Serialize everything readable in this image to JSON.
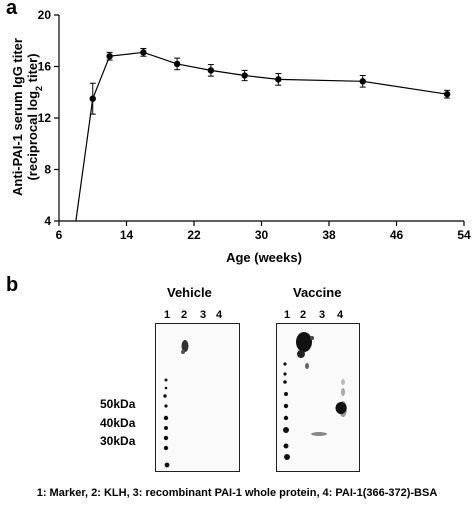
{
  "panel_a_label": "a",
  "panel_b_label": "b",
  "chart_data": {
    "type": "line",
    "xlabel": "Age (weeks)",
    "ylabel_line1": "Anti-PAI-1 serum IgG titer",
    "ylabel_line2_prefix": "(reciprocal log",
    "ylabel_line2_sub": "2",
    "ylabel_line2_suffix": " titer)",
    "xlim": [
      6,
      54
    ],
    "ylim": [
      4,
      20
    ],
    "xticks": [
      6,
      14,
      22,
      30,
      38,
      46,
      54
    ],
    "yticks": [
      4,
      8,
      12,
      16,
      20
    ],
    "series": [
      {
        "x": [
          8,
          10,
          12,
          16,
          20,
          24,
          28,
          32,
          42,
          52
        ],
        "y": [
          4.0,
          13.5,
          16.8,
          17.1,
          16.2,
          15.7,
          15.3,
          15.0,
          14.85,
          13.85
        ],
        "err": [
          0,
          1.2,
          0.3,
          0.3,
          0.45,
          0.45,
          0.4,
          0.45,
          0.45,
          0.3
        ]
      }
    ]
  },
  "blots": {
    "vehicle": {
      "title": "Vehicle",
      "lanes": [
        "1",
        "2",
        "3",
        "4"
      ]
    },
    "vaccine": {
      "title": "Vaccine",
      "lanes": [
        "1",
        "2",
        "3",
        "4"
      ]
    },
    "markers": [
      "50kDa",
      "40kDa",
      "30kDa"
    ]
  },
  "caption": "1: Marker, 2: KLH, 3: recombinant PAI-1 whole protein, 4: PAI-1(366-372)-BSA"
}
